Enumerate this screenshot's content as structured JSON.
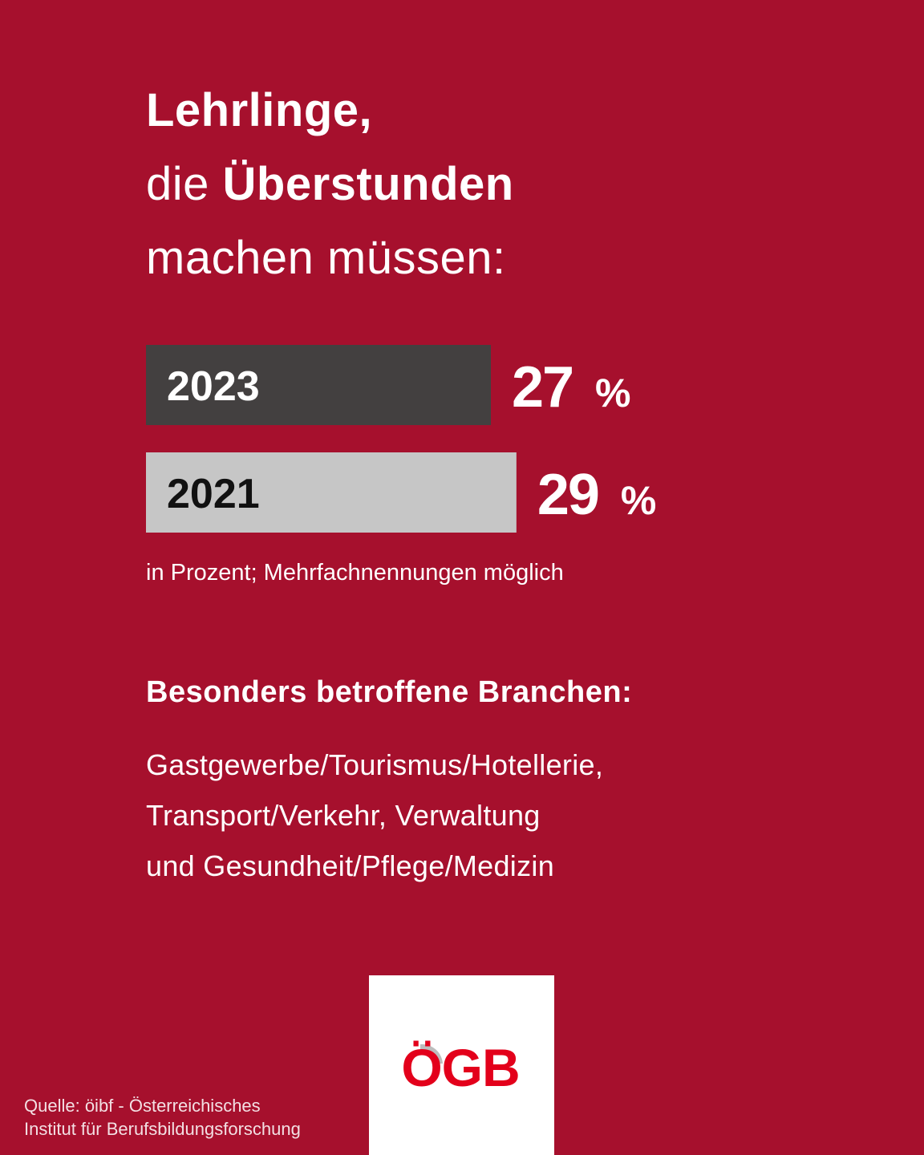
{
  "title": {
    "line1_bold": "Lehrlinge,",
    "line2_prefix": "die ",
    "line2_bold": "Überstunden",
    "line3": "machen müssen:"
  },
  "chart_data": {
    "type": "bar",
    "categories": [
      "2023",
      "2021"
    ],
    "values": [
      27,
      29
    ],
    "value_labels": [
      "27",
      "29"
    ],
    "unit": "%",
    "orientation": "horizontal",
    "colors": [
      "#434040",
      "#c6c6c6"
    ],
    "label_colors": [
      "#ffffff",
      "#111111"
    ]
  },
  "note": "in Prozent; Mehrfachnennungen möglich",
  "branches": {
    "heading": "Besonders betroffene Branchen:",
    "lines": [
      "Gastgewerbe/Tourismus/Hotellerie,",
      "Transport/Verkehr, Verwaltung",
      "und Gesundheit/Pflege/Medizin"
    ]
  },
  "source": {
    "line1": "Quelle: öibf - Österreichisches",
    "line2": "Institut für Berufsbildungsforschung"
  },
  "logo": {
    "text": "ÖGB",
    "color": "#e3001b"
  },
  "colors": {
    "background": "#a6102d"
  }
}
